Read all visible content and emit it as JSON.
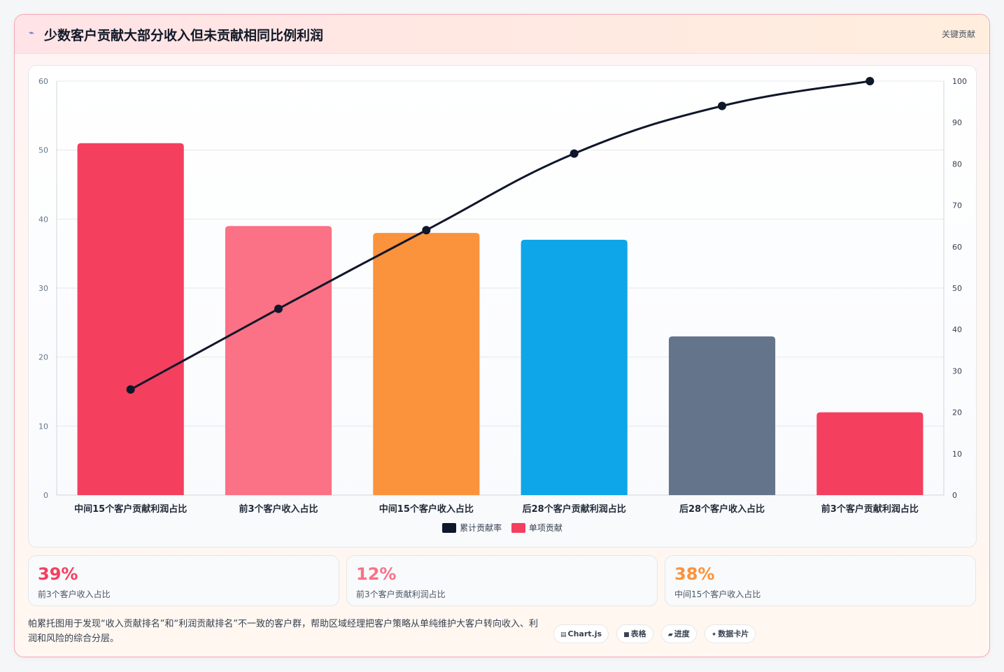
{
  "header": {
    "icon": "lightning-icon",
    "title": "少数客户贡献大部分收入但未贡献相同比例利润",
    "tag": "关键贡献"
  },
  "chart_data": {
    "type": "bar",
    "categories": [
      "中间15个客户贡献利润占比",
      "前3个客户收入占比",
      "中间15个客户收入占比",
      "后28个客户贡献利润占比",
      "后28个客户收入占比",
      "前3个客户贡献利润占比"
    ],
    "series": [
      {
        "name": "单项贡献",
        "type": "bar",
        "axis": "left",
        "values": [
          51,
          39,
          38,
          37,
          23,
          12
        ],
        "colors": [
          "#f43f5e",
          "#fb7185",
          "#fb923c",
          "#0ea5e9",
          "#64748b",
          "#f43f5e"
        ]
      },
      {
        "name": "累计贡献率",
        "type": "line",
        "axis": "right",
        "values": [
          25.5,
          45,
          64,
          82.5,
          94,
          100
        ],
        "color": "#0f172a"
      }
    ],
    "ylim": [
      0,
      60
    ],
    "yticks": [
      0,
      10,
      20,
      30,
      40,
      50,
      60
    ],
    "y2lim": [
      0,
      100
    ],
    "y2ticks": [
      0,
      10,
      20,
      30,
      40,
      50,
      60,
      70,
      80,
      90,
      100
    ],
    "grid": true,
    "legend_position": "bottom"
  },
  "legend": [
    {
      "label": "累计贡献率",
      "color": "#0f172a"
    },
    {
      "label": "单项贡献",
      "color": "#f43f5e"
    }
  ],
  "stats": [
    {
      "value": "39%",
      "label": "前3个客户收入占比",
      "color": "#f43f5e"
    },
    {
      "value": "12%",
      "label": "前3个客户贡献利润占比",
      "color": "#fb7185"
    },
    {
      "value": "38%",
      "label": "中间15个客户收入占比",
      "color": "#fb923c"
    }
  ],
  "footnote": "帕累托图用于发现“收入贡献排名”和“利润贡献排名”不一致的客户群，帮助区域经理把客户策略从单纯维护大客户转向收入、利润和风险的综合分层。",
  "chips": [
    {
      "icon": "▤",
      "label": "Chart.js"
    },
    {
      "icon": "■",
      "label": "表格"
    },
    {
      "icon": "▰",
      "label": "进度"
    },
    {
      "icon": "✦",
      "label": "数据卡片"
    }
  ]
}
